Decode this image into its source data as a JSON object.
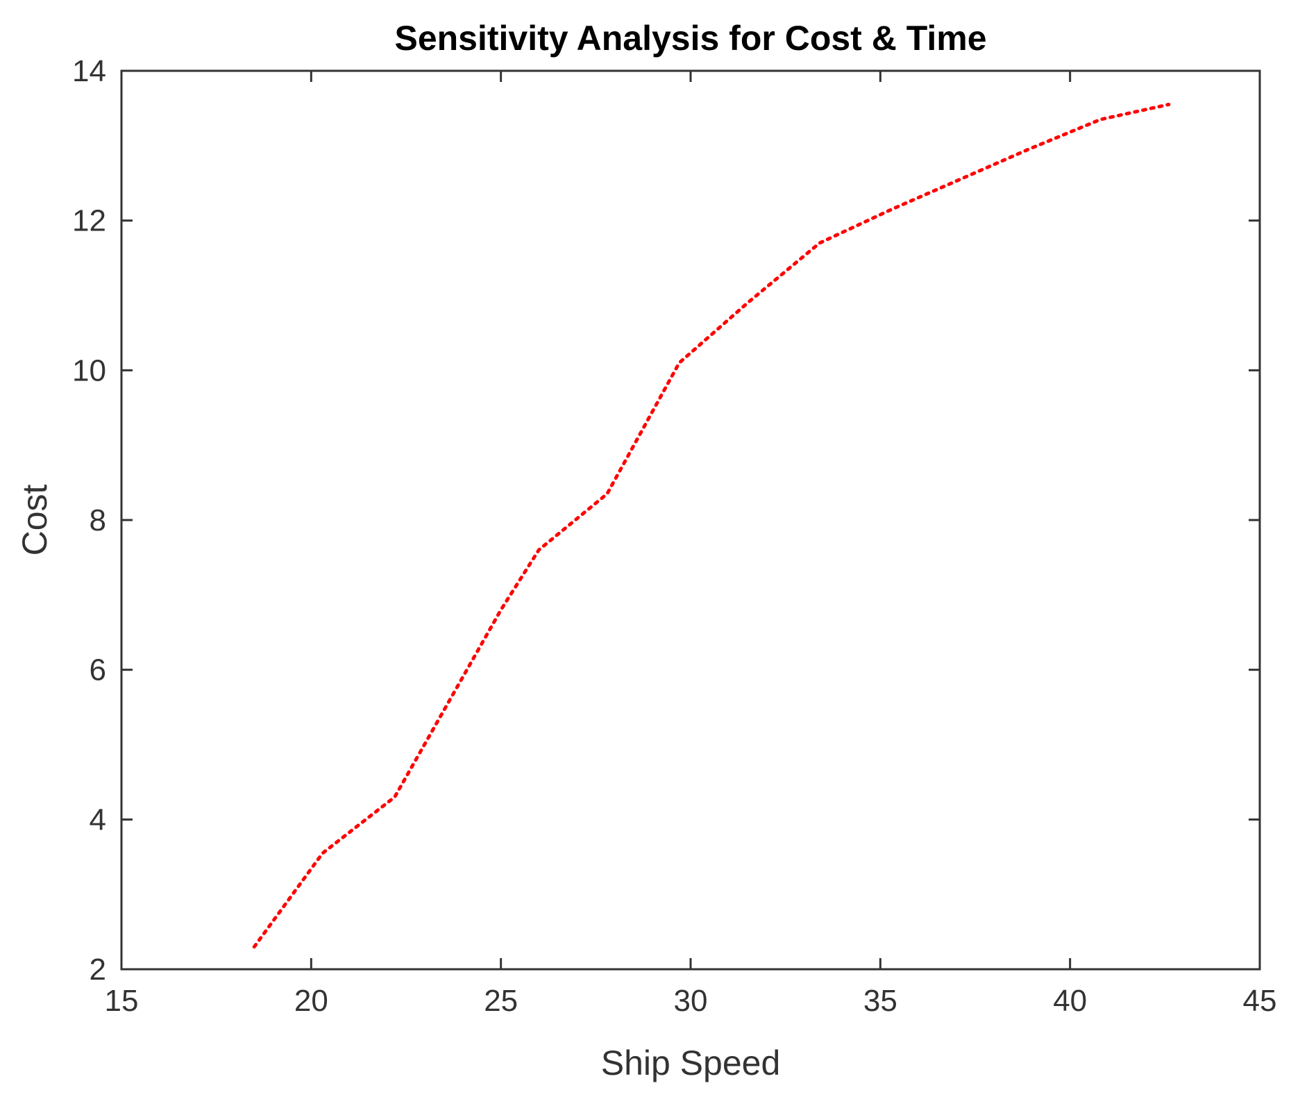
{
  "chart_data": {
    "type": "line",
    "title": "Sensitivity Analysis for Cost & Time",
    "xlabel": "Ship Speed",
    "ylabel": "Cost",
    "xlim": [
      15,
      45
    ],
    "ylim": [
      2,
      14
    ],
    "xticks": [
      15,
      20,
      25,
      30,
      35,
      40,
      45
    ],
    "yticks": [
      2,
      4,
      6,
      8,
      10,
      12,
      14
    ],
    "grid": false,
    "line_style": "dotted",
    "series": [
      {
        "color": "#ff0000",
        "x": [
          18.5,
          20.3,
          22.2,
          25.0,
          26.0,
          27.8,
          29.7,
          31.5,
          33.4,
          35.3,
          37.1,
          38.9,
          40.8,
          42.6
        ],
        "y": [
          2.3,
          3.55,
          4.3,
          6.8,
          7.6,
          8.35,
          10.1,
          10.9,
          11.7,
          12.15,
          12.55,
          12.95,
          13.35,
          13.55
        ]
      }
    ]
  }
}
